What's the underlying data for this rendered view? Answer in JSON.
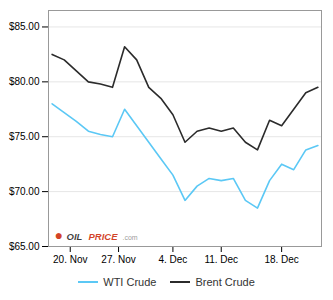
{
  "chart_data": {
    "type": "line",
    "x": [
      0,
      1,
      2,
      3,
      4,
      5,
      6,
      7,
      8,
      9,
      10,
      11,
      12,
      13,
      14,
      15,
      16,
      17,
      18,
      19,
      20,
      21,
      22
    ],
    "series": [
      {
        "name": "WTI Crude",
        "color": "#5bc8f5",
        "values": [
          78.0,
          77.2,
          76.4,
          75.5,
          75.2,
          75.0,
          77.5,
          76.0,
          74.5,
          73.0,
          71.5,
          69.2,
          70.5,
          71.2,
          71.0,
          71.2,
          69.2,
          68.5,
          71.0,
          72.5,
          72.0,
          73.8,
          74.2
        ]
      },
      {
        "name": "Brent Crude",
        "color": "#2b2b2b",
        "values": [
          82.5,
          82.0,
          81.0,
          80.0,
          79.8,
          79.5,
          83.2,
          82.0,
          79.5,
          78.5,
          77.0,
          74.5,
          75.5,
          75.8,
          75.5,
          75.8,
          74.5,
          73.8,
          76.5,
          76.0,
          77.5,
          79.0,
          79.5
        ]
      }
    ],
    "xlim": [
      -0.3,
      22.3
    ],
    "xticks": [
      {
        "value": 1.5,
        "label": "20. Nov"
      },
      {
        "value": 5.5,
        "label": "27. Nov"
      },
      {
        "value": 10,
        "label": "4. Dec"
      },
      {
        "value": 14,
        "label": "11. Dec"
      },
      {
        "value": 19,
        "label": "18. Dec"
      }
    ],
    "ylim": [
      65.0,
      86.5
    ],
    "yticks": [
      {
        "value": 65.0,
        "label": "$65.00"
      },
      {
        "value": 70.0,
        "label": "$70.00"
      },
      {
        "value": 75.0,
        "label": "$75.00"
      },
      {
        "value": 80.0,
        "label": "$80.00"
      },
      {
        "value": 85.0,
        "label": "$85.00"
      }
    ],
    "grid": true,
    "legend": "bottom",
    "annotations": [
      {
        "text": "●",
        "color": "#cc2200"
      },
      {
        "text": "OIL",
        "color": "#1a1a1a"
      },
      {
        "text": "PRICE",
        "color": "#cc2200"
      },
      {
        "text": ".com",
        "color": "#888888"
      }
    ]
  }
}
